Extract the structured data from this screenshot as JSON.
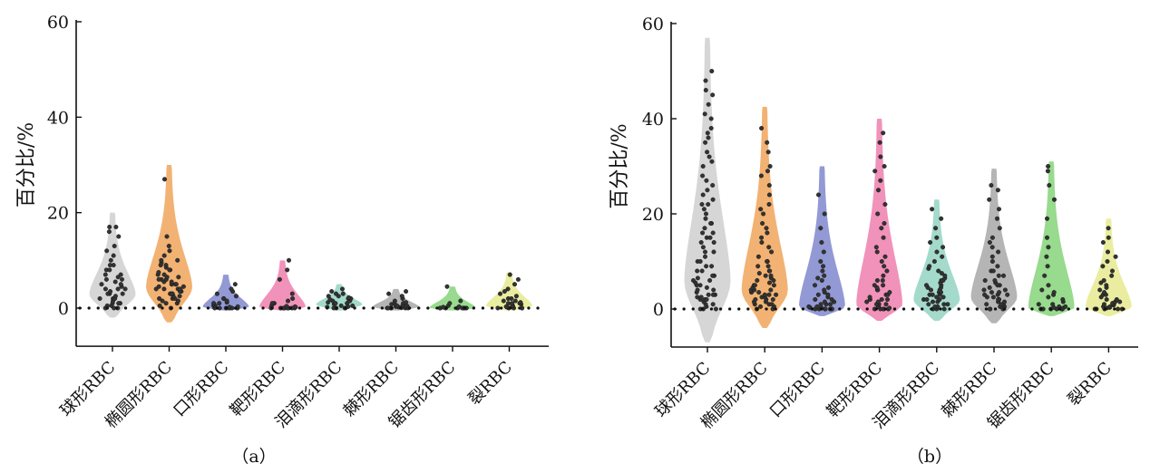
{
  "chart_data": [
    {
      "type": "violin",
      "panel_label": "（a）",
      "ylabel": "百分比/%",
      "ylim": [
        -8,
        60
      ],
      "yticks": [
        0,
        20,
        40,
        60
      ],
      "reference_line_y": 0,
      "categories": [
        "球形RBC",
        "椭圆形RBC",
        "口形RBC",
        "靶形RBC",
        "泪滴形RBC",
        "棘形RBC",
        "锯齿形RBC",
        "裂RBC"
      ],
      "colors": [
        "#cfcfcf",
        "#f0a45a",
        "#7f87cc",
        "#ee7fae",
        "#93d4c2",
        "#a8a8a8",
        "#86d47a",
        "#e6ea8f"
      ],
      "series": [
        {
          "name": "球形RBC",
          "min": -2,
          "max": 20,
          "median": 3,
          "points": [
            0,
            0,
            0,
            0.5,
            0.5,
            1,
            1,
            1,
            1.5,
            2,
            2,
            2,
            2.5,
            3,
            3,
            3,
            3.5,
            4,
            4,
            4,
            4.5,
            5,
            5,
            5.5,
            6,
            6,
            6.5,
            7,
            7,
            8,
            8,
            9,
            9,
            10,
            11,
            12,
            13,
            15,
            16,
            17,
            17
          ]
        },
        {
          "name": "椭圆形RBC",
          "min": -3,
          "max": 30,
          "median": 4.5,
          "points": [
            0,
            0.5,
            1,
            1,
            1.5,
            1.5,
            2,
            2,
            2,
            2.5,
            2.5,
            3,
            3,
            3,
            3,
            3.5,
            3.5,
            4,
            4,
            4,
            4,
            4.5,
            4.5,
            5,
            5,
            5,
            5,
            5.5,
            5.5,
            6,
            6,
            6,
            6.5,
            6.5,
            7,
            7,
            7.5,
            8,
            8,
            8.5,
            9,
            9,
            9.5,
            10,
            10,
            11,
            12,
            13,
            15,
            27
          ]
        },
        {
          "name": "口形RBC",
          "min": -0.5,
          "max": 7,
          "median": 0.3,
          "points": [
            0,
            0,
            0,
            0,
            0,
            0,
            0,
            0.2,
            0.3,
            0.5,
            0.5,
            0.8,
            1,
            1,
            1.2,
            1.5,
            2,
            2,
            2.5,
            3,
            3.5,
            4,
            5
          ]
        },
        {
          "name": "靶形RBC",
          "min": -0.5,
          "max": 10,
          "median": 0.3,
          "points": [
            0,
            0,
            0,
            0,
            0,
            0,
            0,
            0,
            0.2,
            0.3,
            0.4,
            0.5,
            1,
            1,
            1.5,
            2,
            3,
            6,
            8,
            10
          ]
        },
        {
          "name": "泪滴形RBC",
          "min": -0.5,
          "max": 5,
          "median": 0.8,
          "points": [
            0,
            0,
            0,
            0,
            0.2,
            0.3,
            0.5,
            0.5,
            0.8,
            1,
            1,
            1,
            1.2,
            1.5,
            1.5,
            1.8,
            2,
            2,
            2.2,
            2.5,
            2.5,
            3,
            3,
            3.5,
            4
          ]
        },
        {
          "name": "棘形RBC",
          "min": -0.5,
          "max": 4,
          "median": 0.3,
          "points": [
            0,
            0,
            0,
            0,
            0,
            0,
            0.1,
            0.2,
            0.3,
            0.4,
            0.5,
            0.5,
            0.6,
            0.8,
            1,
            1,
            1.2,
            1.5,
            2,
            2.5,
            3,
            3.5
          ]
        },
        {
          "name": "锯齿形RBC",
          "min": -0.5,
          "max": 4.5,
          "median": 0.1,
          "points": [
            0,
            0,
            0,
            0,
            0,
            0,
            0,
            0,
            0.2,
            0.3,
            0.5,
            1,
            1.5,
            4.5
          ]
        },
        {
          "name": "裂RBC",
          "min": -0.5,
          "max": 7.5,
          "median": 0.5,
          "points": [
            0,
            0,
            0,
            0,
            0,
            0.2,
            0.3,
            0.5,
            0.5,
            0.8,
            1,
            1,
            1,
            1.2,
            1.5,
            1.5,
            2,
            2,
            2.5,
            3,
            3.5,
            4,
            5,
            6,
            7
          ]
        }
      ]
    },
    {
      "type": "violin",
      "panel_label": "（b）",
      "ylabel": "百分比/%",
      "ylim": [
        -8,
        60
      ],
      "yticks": [
        0,
        20,
        40,
        60
      ],
      "reference_line_y": 0,
      "categories": [
        "球形RBC",
        "椭圆形RBC",
        "口形RBC",
        "靶形RBC",
        "泪滴形RBC",
        "棘形RBC",
        "锯齿形RBC",
        "裂RBC"
      ],
      "colors": [
        "#cfcfcf",
        "#f0a45a",
        "#7f87cc",
        "#ee7fae",
        "#93d4c2",
        "#a8a8a8",
        "#86d47a",
        "#e6ea8f"
      ],
      "series": [
        {
          "name": "球形RBC",
          "min": -7,
          "max": 57,
          "median": 6,
          "points": [
            0,
            0,
            0,
            0.5,
            1,
            1,
            1.5,
            2,
            2,
            2,
            2.5,
            2.5,
            3,
            3,
            3,
            3.5,
            4,
            4,
            4.5,
            5,
            5,
            5.5,
            6,
            6,
            6.5,
            7,
            7,
            8,
            8,
            9,
            9,
            10,
            10,
            11,
            12,
            12,
            13,
            14,
            14,
            15,
            15,
            16,
            16,
            17,
            18,
            18,
            19,
            20,
            21,
            22,
            22,
            23,
            24,
            25,
            26,
            27,
            28,
            30,
            31,
            32,
            33,
            35,
            36,
            37,
            38,
            40,
            41,
            43,
            45,
            46,
            48,
            50
          ]
        },
        {
          "name": "椭圆形RBC",
          "min": -4,
          "max": 42.5,
          "median": 4,
          "points": [
            0,
            0,
            0.5,
            0.5,
            1,
            1,
            1,
            1.5,
            1.5,
            2,
            2,
            2,
            2.5,
            2.5,
            3,
            3,
            3,
            3.5,
            3.5,
            4,
            4,
            4,
            4.5,
            5,
            5,
            5,
            5.5,
            6,
            6,
            6.5,
            7,
            7,
            7.5,
            8,
            8,
            9,
            9,
            10,
            10,
            11,
            12,
            13,
            14,
            15,
            16,
            17,
            18,
            20,
            21,
            22,
            24,
            26,
            28,
            29,
            30,
            33,
            35,
            38
          ]
        },
        {
          "name": "口形RBC",
          "min": -1.5,
          "max": 30,
          "median": 0.5,
          "points": [
            0,
            0,
            0,
            0,
            0,
            0,
            0,
            0.2,
            0.3,
            0.5,
            0.5,
            1,
            1,
            1,
            1.5,
            1.5,
            2,
            2,
            2.5,
            3,
            3,
            3.5,
            4,
            4.5,
            5,
            6,
            6.5,
            7,
            8,
            9,
            10,
            12,
            14,
            17,
            20,
            24
          ]
        },
        {
          "name": "靶形RBC",
          "min": -2.5,
          "max": 40,
          "median": 1,
          "points": [
            0,
            0,
            0,
            0,
            0,
            0.2,
            0.5,
            0.5,
            1,
            1,
            1,
            1.5,
            1.5,
            2,
            2,
            2,
            2.5,
            3,
            3,
            3.5,
            4,
            4,
            4.5,
            5,
            5,
            6,
            6,
            7,
            8,
            9,
            10,
            11,
            12,
            13,
            15,
            17,
            18,
            20,
            22,
            25,
            27,
            29,
            30,
            32,
            35,
            37
          ]
        },
        {
          "name": "泪滴形RBC",
          "min": -2.5,
          "max": 23,
          "median": 2,
          "points": [
            0,
            0,
            0,
            0.5,
            0.5,
            1,
            1,
            1,
            1.5,
            1.5,
            2,
            2,
            2,
            2.5,
            2.5,
            3,
            3,
            3,
            3.5,
            3.5,
            4,
            4,
            4.5,
            4.5,
            5,
            5,
            5.5,
            6,
            6,
            6.5,
            7,
            7.5,
            8,
            8.5,
            9,
            10,
            11,
            12,
            13,
            14,
            15,
            17,
            19,
            21
          ]
        },
        {
          "name": "棘形RBC",
          "min": -3,
          "max": 29.5,
          "median": 2.5,
          "points": [
            0,
            0,
            0,
            0.5,
            0.5,
            1,
            1,
            1,
            1.5,
            1.5,
            2,
            2,
            2,
            2.5,
            2.5,
            3,
            3,
            3,
            3.5,
            3.5,
            4,
            4,
            4.5,
            5,
            5,
            5.5,
            6,
            6,
            7,
            7,
            8,
            8,
            9,
            10,
            11,
            12,
            13,
            14,
            15,
            17,
            19,
            21,
            23,
            25,
            26
          ]
        },
        {
          "name": "锯齿形RBC",
          "min": -1.5,
          "max": 31,
          "median": 0.3,
          "points": [
            0,
            0,
            0,
            0,
            0,
            0,
            0,
            0.2,
            0.3,
            0.5,
            0.5,
            1,
            1,
            1.5,
            2,
            2.5,
            3,
            3.5,
            4,
            5,
            7,
            9,
            11,
            13,
            15,
            19,
            23,
            26,
            29,
            30
          ]
        },
        {
          "name": "裂RBC",
          "min": -1.5,
          "max": 19,
          "median": 0.5,
          "points": [
            0,
            0,
            0,
            0,
            0,
            0.2,
            0.3,
            0.5,
            0.5,
            0.8,
            1,
            1,
            1.2,
            1.5,
            1.5,
            2,
            2,
            2.5,
            3,
            3,
            3.5,
            4,
            4.5,
            5,
            5.5,
            6,
            7,
            8,
            9,
            10,
            11,
            12,
            14,
            15,
            17
          ]
        }
      ]
    }
  ]
}
